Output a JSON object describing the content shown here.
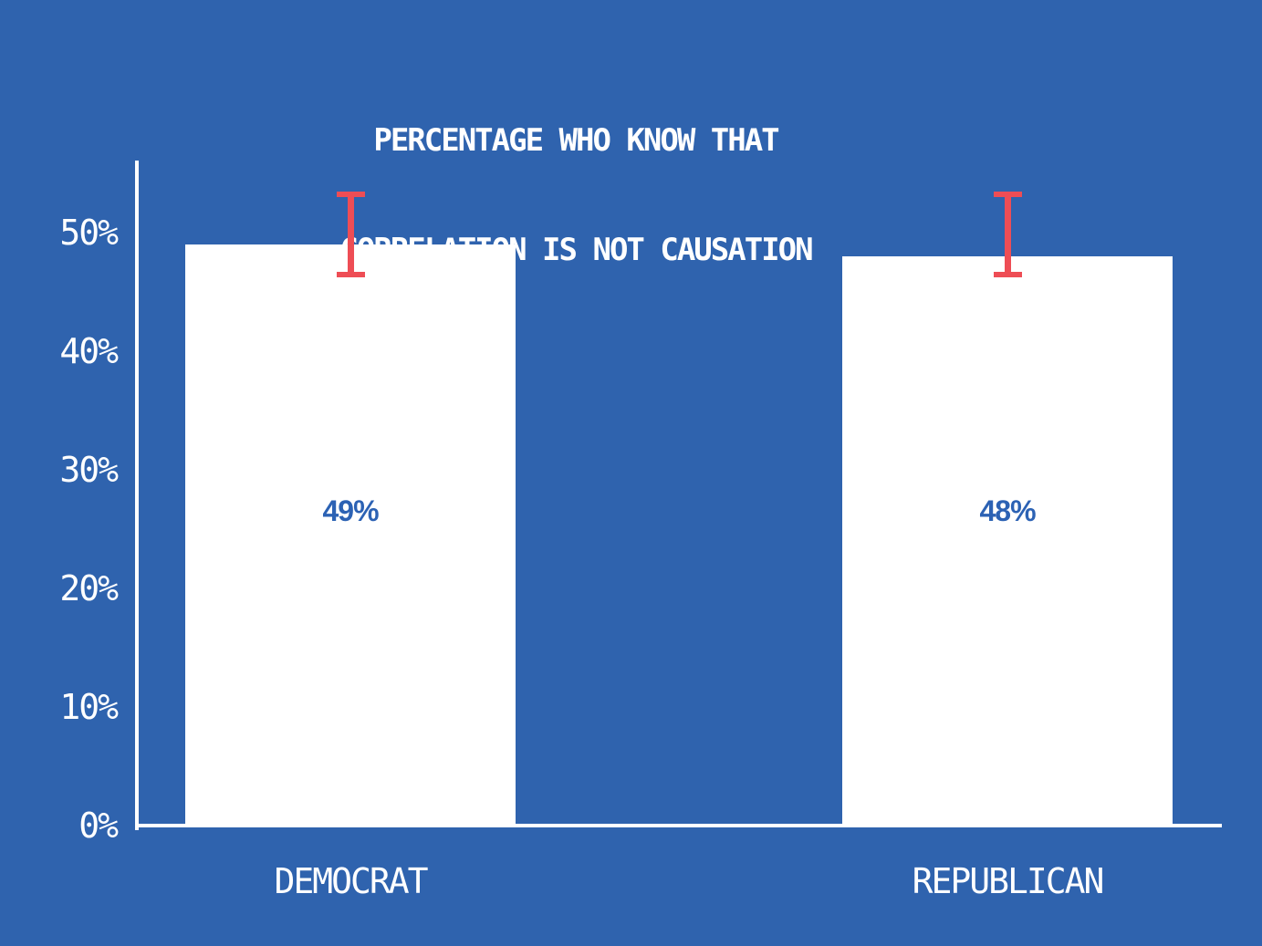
{
  "chart_data": {
    "type": "bar",
    "title": "PERCENTAGE WHO KNOW THAT CORRELATION IS NOT CAUSATION",
    "title_lines": [
      "PERCENTAGE WHO KNOW THAT",
      "CORRELATION IS NOT CAUSATION"
    ],
    "categories": [
      "DEMOCRAT",
      "REPUBLICAN"
    ],
    "values": [
      49,
      48
    ],
    "value_labels": [
      "49%",
      "48%"
    ],
    "error_bars": [
      {
        "low": 46.5,
        "high": 53.2
      },
      {
        "low": 46.5,
        "high": 53.2
      }
    ],
    "y_ticks": [
      "0%",
      "10%",
      "20%",
      "30%",
      "40%",
      "50%"
    ],
    "y_tick_values": [
      0,
      10,
      20,
      30,
      40,
      50
    ],
    "ylim": [
      0,
      56
    ],
    "xlabel": "",
    "ylabel": "",
    "grid": false,
    "legend": false,
    "colors": {
      "background": "#2f63ae",
      "bar": "#ffffff",
      "error_bar": "#ee4d55",
      "axis": "#ffffff",
      "tick_text": "#ffffff",
      "title_text": "#ffffff",
      "category_text": "#ffffff",
      "value_label_text": "#2c62b4"
    }
  }
}
